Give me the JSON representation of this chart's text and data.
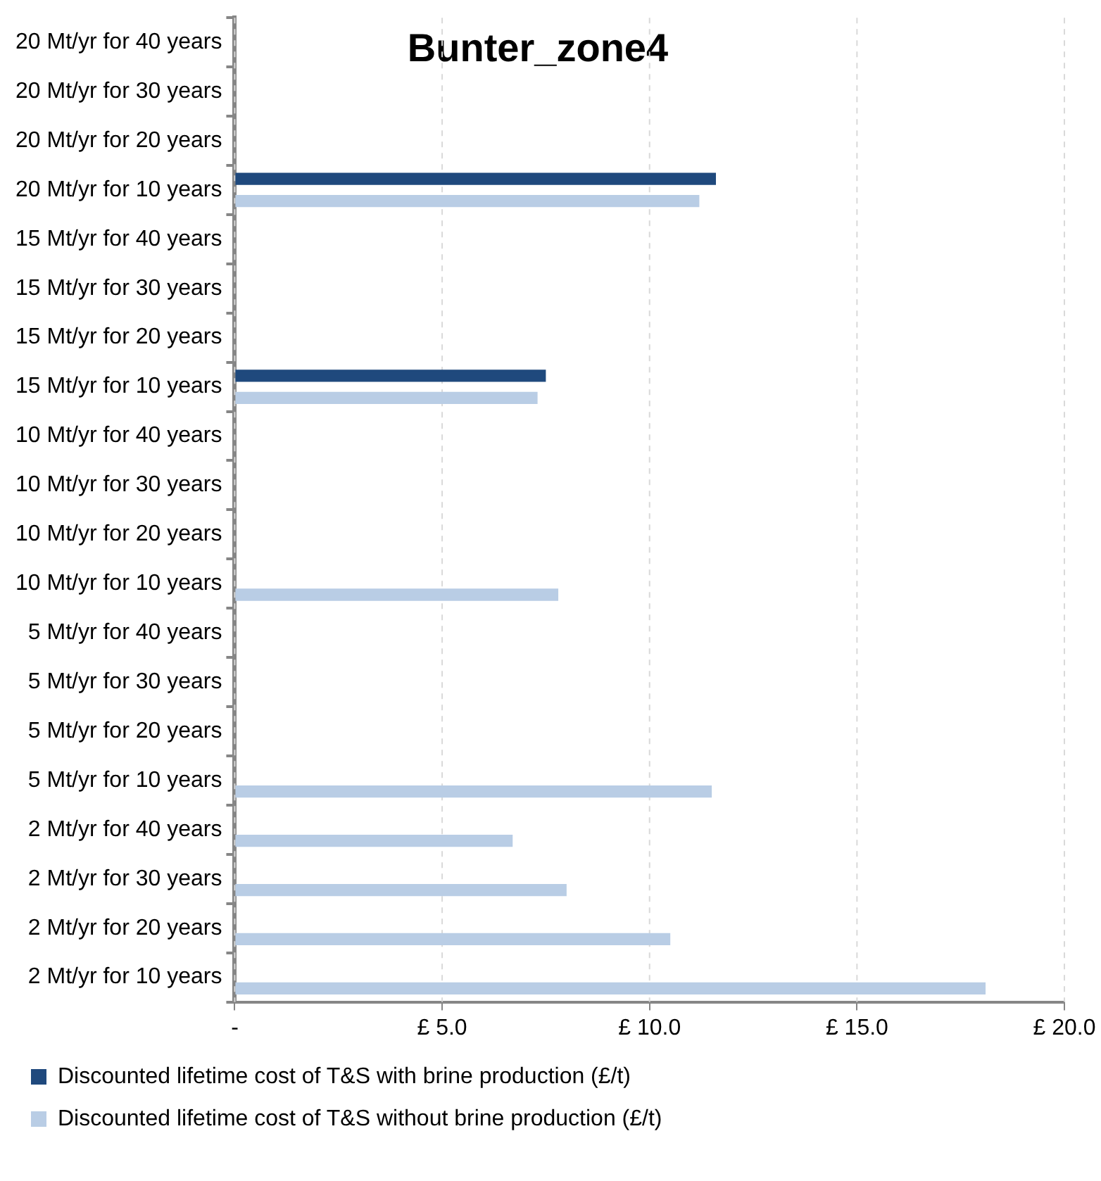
{
  "chart_data": {
    "type": "bar",
    "orientation": "horizontal",
    "title": "Bunter_zone4",
    "categories": [
      "20 Mt/yr for 40 years",
      "20 Mt/yr for 30 years",
      "20 Mt/yr for 20 years",
      "20 Mt/yr for 10 years",
      "15 Mt/yr for 40 years",
      "15 Mt/yr for 30 years",
      "15 Mt/yr for 20 years",
      "15 Mt/yr for 10 years",
      "10 Mt/yr for 40 years",
      "10 Mt/yr for 30 years",
      "10 Mt/yr for 20 years",
      "10 Mt/yr for 10 years",
      "5 Mt/yr for 40 years",
      "5 Mt/yr for 30 years",
      "5 Mt/yr for 20 years",
      "5 Mt/yr for 10 years",
      "2 Mt/yr for 40 years",
      "2 Mt/yr for 30 years",
      "2 Mt/yr for 20 years",
      "2 Mt/yr for 10 years"
    ],
    "series": [
      {
        "name": "Discounted lifetime cost of T&S with brine production (£/t)",
        "color": "#1f497d",
        "values": [
          null,
          null,
          null,
          11.6,
          null,
          null,
          null,
          7.5,
          null,
          null,
          null,
          null,
          null,
          null,
          null,
          null,
          null,
          null,
          null,
          null
        ]
      },
      {
        "name": "Discounted lifetime cost of T&S without brine production (£/t)",
        "color": "#b9cde5",
        "values": [
          null,
          null,
          null,
          11.2,
          null,
          null,
          null,
          7.3,
          null,
          null,
          null,
          7.8,
          null,
          null,
          null,
          11.5,
          6.7,
          8.0,
          10.5,
          18.1
        ]
      }
    ],
    "xlim": [
      0,
      20
    ],
    "xticks": [
      {
        "value": 0,
        "label": "-"
      },
      {
        "value": 5,
        "label": "£ 5.0"
      },
      {
        "value": 10,
        "label": "£ 10.0"
      },
      {
        "value": 15,
        "label": "£ 15.0"
      },
      {
        "value": 20,
        "label": "£ 20.0"
      }
    ],
    "grid": "x",
    "legend": "bottom"
  }
}
